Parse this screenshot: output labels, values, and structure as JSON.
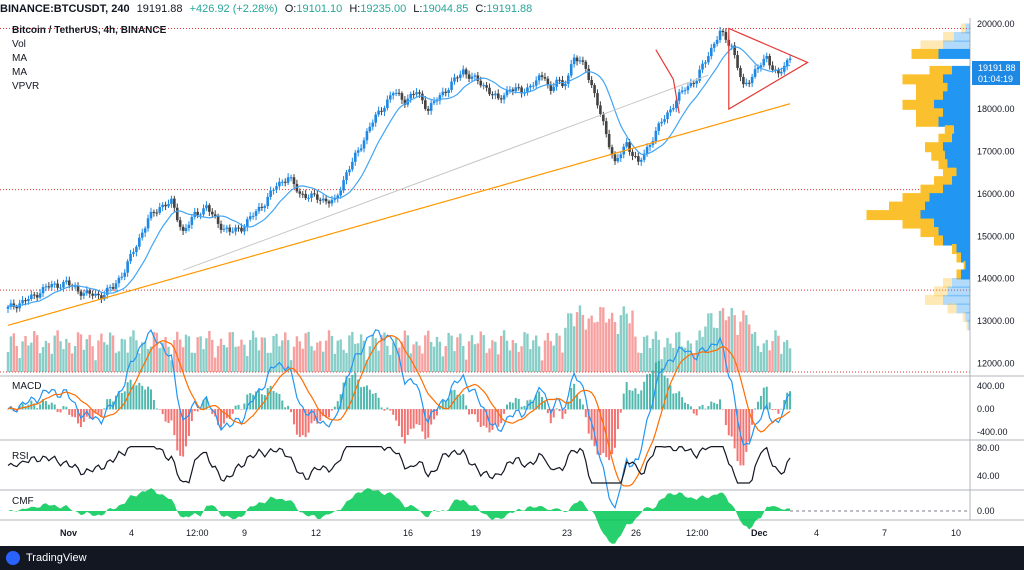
{
  "header": {
    "symbol": "BINANCE:BTCUSDT, 240",
    "last": "19191.88",
    "change": "+426.92 (+2.28%)",
    "o_label": "O:",
    "o": "19101.10",
    "h_label": "H:",
    "h": "19235.00",
    "l_label": "L:",
    "l": "19044.85",
    "c_label": "C:",
    "c": "19191.88"
  },
  "legend": {
    "title": "Bitcoin / TetherUS, 4h, BINANCE",
    "items": [
      "Vol",
      "MA",
      "MA",
      "VPVR"
    ]
  },
  "price_badge": {
    "price": "19191.88",
    "countdown": "01:04:19"
  },
  "panes": {
    "macd": "MACD",
    "rsi": "RSI",
    "cmf": "CMF"
  },
  "footer": {
    "brand": "TradingView"
  },
  "colors": {
    "up": "#26a69a",
    "down": "#ef5350",
    "candle_up": "#1e88e5",
    "candle_down": "#424242",
    "ma_fast": "#42a5f5",
    "ma_slow": "#ff9800",
    "triangle": "#e53935",
    "vpvr_up": "#2196f3",
    "vpvr_down": "#fbc02d"
  },
  "chart_data": [
    {
      "type": "candlestick",
      "title": "Bitcoin / TetherUS, 4h, BINANCE",
      "ylim": [
        11800,
        20100
      ],
      "y_ticks": [
        "20000.00",
        "19000.00",
        "18000.00",
        "17000.00",
        "16000.00",
        "15000.00",
        "14000.00",
        "13000.00",
        "12000.00"
      ],
      "x_ticks": [
        "Nov",
        "4",
        "12:00",
        "9",
        "12",
        "16",
        "19",
        "23",
        "26",
        "12:00",
        "Dec",
        "4",
        "7",
        "10"
      ],
      "close_anchors": [
        [
          0,
          13300
        ],
        [
          8,
          13550
        ],
        [
          13,
          13800
        ],
        [
          20,
          13900
        ],
        [
          26,
          13650
        ],
        [
          32,
          13600
        ],
        [
          36,
          13800
        ],
        [
          40,
          14200
        ],
        [
          44,
          14800
        ],
        [
          48,
          15400
        ],
        [
          52,
          15700
        ],
        [
          56,
          15800
        ],
        [
          60,
          15100
        ],
        [
          64,
          15500
        ],
        [
          68,
          15700
        ],
        [
          72,
          15300
        ],
        [
          76,
          15100
        ],
        [
          80,
          15200
        ],
        [
          84,
          15500
        ],
        [
          88,
          15800
        ],
        [
          92,
          16200
        ],
        [
          96,
          16400
        ],
        [
          100,
          16000
        ],
        [
          106,
          15900
        ],
        [
          112,
          15800
        ],
        [
          116,
          16500
        ],
        [
          120,
          17000
        ],
        [
          124,
          17600
        ],
        [
          128,
          18000
        ],
        [
          132,
          18400
        ],
        [
          136,
          18200
        ],
        [
          140,
          18400
        ],
        [
          144,
          18000
        ],
        [
          148,
          18300
        ],
        [
          152,
          18600
        ],
        [
          156,
          18900
        ],
        [
          160,
          18700
        ],
        [
          164,
          18500
        ],
        [
          168,
          18200
        ],
        [
          172,
          18500
        ],
        [
          176,
          18400
        ],
        [
          180,
          18600
        ],
        [
          184,
          18800
        ],
        [
          186,
          18400
        ],
        [
          188,
          18700
        ],
        [
          190,
          18500
        ],
        [
          194,
          19200
        ],
        [
          198,
          19000
        ],
        [
          202,
          18100
        ],
        [
          206,
          17200
        ],
        [
          208,
          16700
        ],
        [
          212,
          17200
        ],
        [
          216,
          16700
        ],
        [
          220,
          17200
        ],
        [
          224,
          17700
        ],
        [
          228,
          18100
        ],
        [
          232,
          18500
        ],
        [
          236,
          18700
        ],
        [
          240,
          19300
        ],
        [
          244,
          19800
        ],
        [
          248,
          19500
        ],
        [
          252,
          18500
        ],
        [
          256,
          18900
        ],
        [
          260,
          19200
        ],
        [
          264,
          18800
        ],
        [
          268,
          19191.88
        ]
      ],
      "volume_ylim": [
        0,
        1
      ],
      "ma_fast_label": "MA",
      "ma_slow_label": "MA",
      "vpvr": {
        "price_levels": [
          19900,
          19700,
          19500,
          19300,
          18900,
          18700,
          18500,
          18300,
          18100,
          17900,
          17700,
          17500,
          17300,
          17100,
          16900,
          16700,
          16500,
          16300,
          16100,
          15900,
          15700,
          15500,
          15300,
          15100,
          14900,
          14700,
          14500,
          14300,
          14100,
          13900,
          13700,
          13500,
          13300,
          13100,
          12900
        ],
        "up_volume": [
          0.05,
          0.18,
          0.3,
          0.35,
          0.2,
          0.3,
          0.25,
          0.3,
          0.4,
          0.3,
          0.35,
          0.18,
          0.2,
          0.3,
          0.28,
          0.25,
          0.15,
          0.2,
          0.3,
          0.45,
          0.5,
          0.55,
          0.4,
          0.35,
          0.3,
          0.15,
          0.1,
          0.05,
          0.1,
          0.2,
          0.25,
          0.3,
          0.15,
          0.05,
          0.02
        ],
        "down_volume": [
          0.05,
          0.12,
          0.25,
          0.3,
          0.25,
          0.45,
          0.35,
          0.3,
          0.35,
          0.3,
          0.25,
          0.1,
          0.15,
          0.2,
          0.15,
          0.1,
          0.15,
          0.2,
          0.25,
          0.3,
          0.4,
          0.6,
          0.35,
          0.2,
          0.1,
          0.05,
          0.05,
          0.02,
          0.05,
          0.1,
          0.15,
          0.2,
          0.1,
          0.03,
          0.02
        ]
      },
      "pattern": "symmetrical triangle"
    },
    {
      "type": "bar",
      "title": "MACD",
      "y_ticks": [
        "400.00",
        "0.00",
        "-400.00"
      ],
      "ylim": [
        -520,
        520
      ]
    },
    {
      "type": "line",
      "title": "RSI",
      "y_ticks": [
        "80.00",
        "40.00"
      ],
      "ylim": [
        20,
        90
      ]
    },
    {
      "type": "area",
      "title": "CMF",
      "y_ticks": [
        "0.00"
      ],
      "ylim": [
        -0.12,
        0.25
      ]
    }
  ]
}
